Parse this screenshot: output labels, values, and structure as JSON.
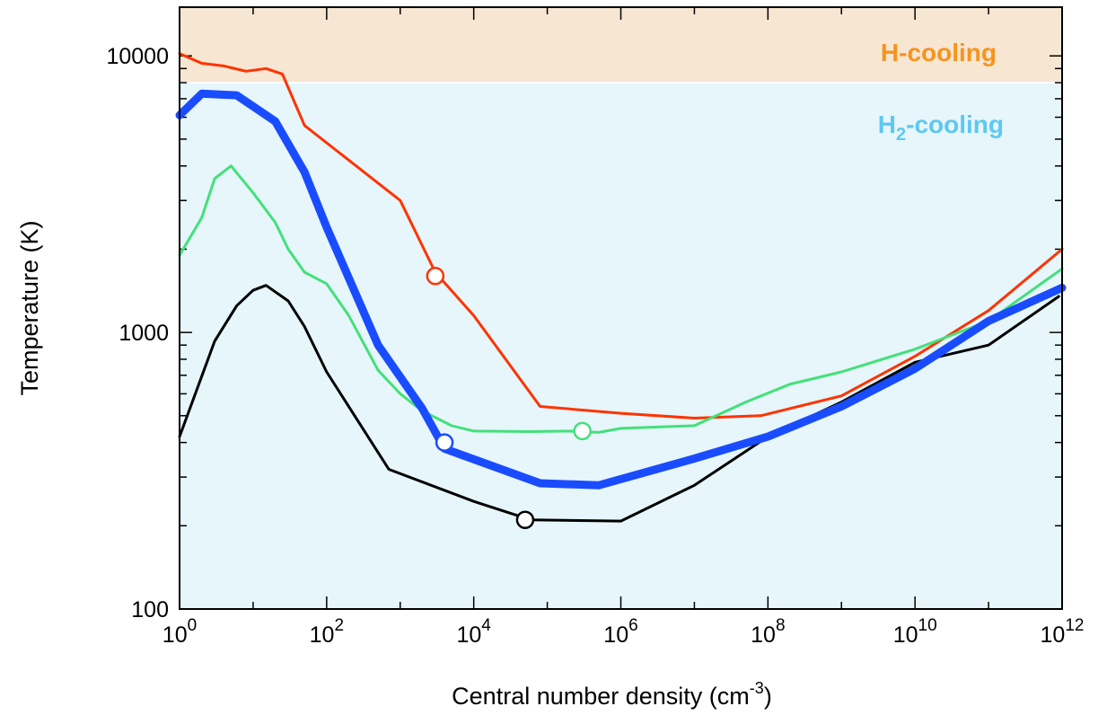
{
  "chart_data": {
    "type": "line",
    "xlabel": "Central number density (cm",
    "xlabel_exp": "-3",
    "xlabel_tail": ")",
    "ylabel": "Temperature (K)",
    "x_scale": "log",
    "y_scale": "log",
    "xlim": [
      1,
      1000000000000.0
    ],
    "ylim": [
      100,
      15000
    ],
    "x_ticks": [
      {
        "base": "10",
        "exp": "0",
        "value": 1
      },
      {
        "base": "10",
        "exp": "2",
        "value": 100
      },
      {
        "base": "10",
        "exp": "4",
        "value": 10000
      },
      {
        "base": "10",
        "exp": "6",
        "value": 1000000
      },
      {
        "base": "10",
        "exp": "8",
        "value": 100000000
      },
      {
        "base": "10",
        "exp": "10",
        "value": 10000000000
      },
      {
        "base": "10",
        "exp": "12",
        "value": 1000000000000
      }
    ],
    "y_ticks": [
      {
        "label": "100",
        "value": 100
      },
      {
        "label": "1000",
        "value": 1000
      },
      {
        "label": "10000",
        "value": 10000
      }
    ],
    "regions": [
      {
        "label": "H-cooling",
        "y_from": 8000,
        "y_to": 15000,
        "fill": "#f7e6d2",
        "text_color": "#f7941d"
      },
      {
        "label_main": "H",
        "label_sub": "2",
        "label_tail": "-cooling",
        "y_from": 100,
        "y_to": 8000,
        "fill": "#e6f6fb",
        "text_color": "#5ec8f2"
      }
    ],
    "series": [
      {
        "color": "#000000",
        "width": 3,
        "points": [
          [
            1,
            420
          ],
          [
            3,
            930
          ],
          [
            6,
            1250
          ],
          [
            10,
            1420
          ],
          [
            15,
            1480
          ],
          [
            30,
            1300
          ],
          [
            50,
            1050
          ],
          [
            100,
            720
          ],
          [
            700,
            320
          ],
          [
            10000,
            245
          ],
          [
            60000,
            210
          ],
          [
            1000000,
            208
          ],
          [
            10000000,
            280
          ],
          [
            100000000,
            420
          ],
          [
            1000000000,
            560
          ],
          [
            10000000000,
            780
          ],
          [
            100000000000,
            900
          ],
          [
            900000000000,
            1350
          ]
        ],
        "marker": [
          50000,
          210
        ]
      },
      {
        "color": "#ff3300",
        "width": 3,
        "points": [
          [
            1,
            10200
          ],
          [
            2,
            9400
          ],
          [
            4,
            9200
          ],
          [
            8,
            8800
          ],
          [
            15,
            9000
          ],
          [
            25,
            8600
          ],
          [
            50,
            5600
          ],
          [
            1000,
            3000
          ],
          [
            3000,
            1650
          ],
          [
            10000,
            1150
          ],
          [
            80000,
            540
          ],
          [
            1000000,
            510
          ],
          [
            10000000,
            490
          ],
          [
            80000000,
            500
          ],
          [
            1000000000,
            590
          ],
          [
            10000000000,
            820
          ],
          [
            100000000000,
            1200
          ],
          [
            1000000000000,
            2000
          ]
        ],
        "marker": [
          3000,
          1600
        ]
      },
      {
        "color": "#44e07a",
        "width": 3,
        "points": [
          [
            1,
            1900
          ],
          [
            2,
            2600
          ],
          [
            3,
            3600
          ],
          [
            5,
            4000
          ],
          [
            10,
            3200
          ],
          [
            20,
            2500
          ],
          [
            30,
            2000
          ],
          [
            50,
            1650
          ],
          [
            100,
            1500
          ],
          [
            200,
            1150
          ],
          [
            500,
            730
          ],
          [
            1000,
            600
          ],
          [
            2000,
            520
          ],
          [
            5000,
            460
          ],
          [
            10000,
            440
          ],
          [
            60000,
            438
          ],
          [
            200000,
            440
          ],
          [
            500000,
            435
          ],
          [
            1000000,
            450
          ],
          [
            10000000,
            460
          ],
          [
            50000000,
            560
          ],
          [
            200000000,
            650
          ],
          [
            1000000000,
            720
          ],
          [
            10000000000,
            870
          ],
          [
            100000000000,
            1100
          ],
          [
            1000000000000,
            1700
          ]
        ],
        "marker": [
          300000,
          440
        ]
      },
      {
        "color": "#1a4cff",
        "width": 9,
        "points": [
          [
            1,
            6100
          ],
          [
            2,
            7300
          ],
          [
            6,
            7200
          ],
          [
            20,
            5800
          ],
          [
            50,
            3800
          ],
          [
            100,
            2400
          ],
          [
            500,
            900
          ],
          [
            2000,
            530
          ],
          [
            4000,
            380
          ],
          [
            80000,
            285
          ],
          [
            500000,
            280
          ],
          [
            10000000,
            350
          ],
          [
            100000000,
            420
          ],
          [
            1000000000,
            540
          ],
          [
            10000000000,
            740
          ],
          [
            100000000000,
            1100
          ],
          [
            1000000000000,
            1450
          ]
        ],
        "marker": [
          4000,
          400
        ]
      }
    ]
  }
}
